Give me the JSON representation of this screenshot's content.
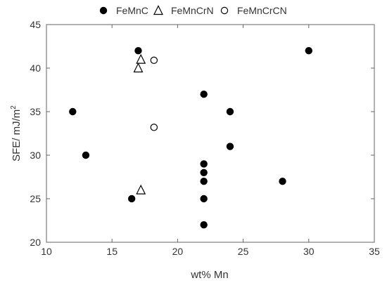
{
  "chart_data": {
    "type": "scatter",
    "xlabel": "wt% Mn",
    "ylabel": "SFE/ mJ/m",
    "ylabel_sup": "2",
    "xlim": [
      10,
      35
    ],
    "ylim": [
      20,
      45
    ],
    "xticks": [
      10,
      15,
      20,
      25,
      30,
      35
    ],
    "yticks": [
      20,
      25,
      30,
      35,
      40,
      45
    ],
    "grid": false,
    "legend_position": "top",
    "series": [
      {
        "name": "FeMnC",
        "marker": "filled-circle",
        "color": "#000000",
        "points": [
          {
            "x": 12,
            "y": 35
          },
          {
            "x": 13,
            "y": 30
          },
          {
            "x": 16.5,
            "y": 25
          },
          {
            "x": 17,
            "y": 42
          },
          {
            "x": 22,
            "y": 37
          },
          {
            "x": 22,
            "y": 29
          },
          {
            "x": 22,
            "y": 28
          },
          {
            "x": 22,
            "y": 27
          },
          {
            "x": 22,
            "y": 25
          },
          {
            "x": 22,
            "y": 22
          },
          {
            "x": 24,
            "y": 35
          },
          {
            "x": 24,
            "y": 31
          },
          {
            "x": 28,
            "y": 27
          },
          {
            "x": 30,
            "y": 42
          }
        ]
      },
      {
        "name": "FeMnCrN",
        "marker": "open-triangle",
        "color": "#000000",
        "points": [
          {
            "x": 17,
            "y": 40
          },
          {
            "x": 17.2,
            "y": 41
          },
          {
            "x": 17.2,
            "y": 26
          }
        ]
      },
      {
        "name": "FeMnCrCN",
        "marker": "open-circle",
        "color": "#000000",
        "points": [
          {
            "x": 18.2,
            "y": 40.9
          },
          {
            "x": 18.2,
            "y": 33.2
          }
        ]
      }
    ]
  }
}
